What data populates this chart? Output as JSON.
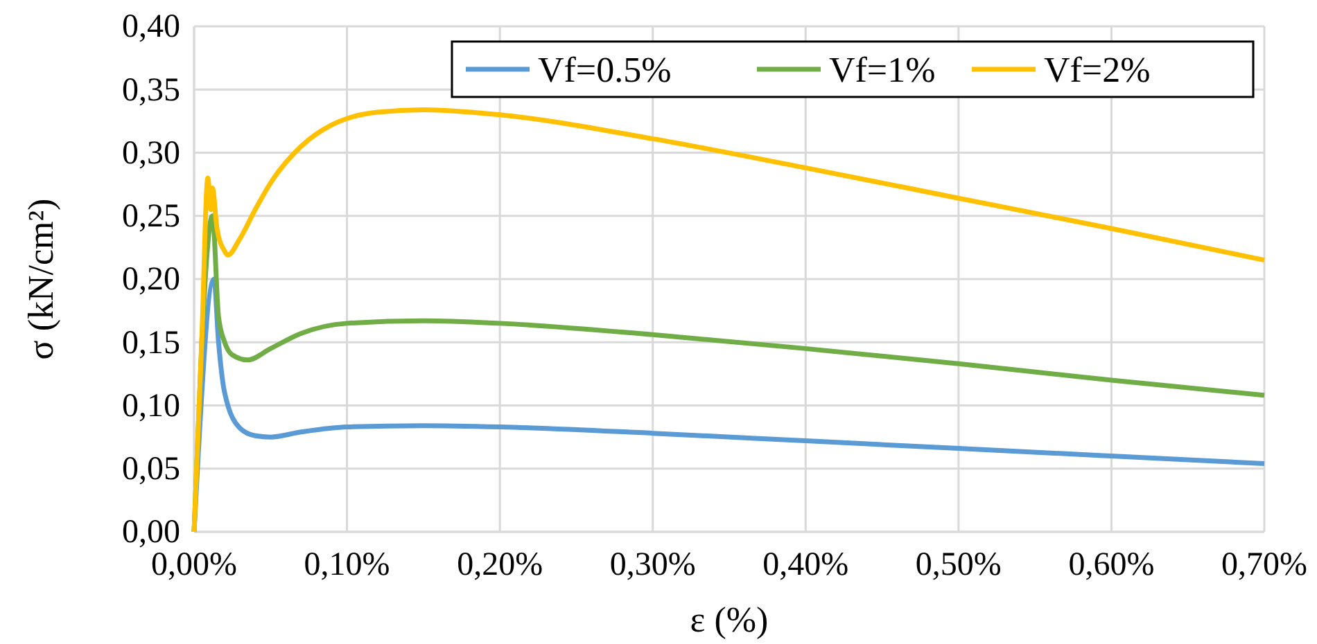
{
  "chart_data": {
    "type": "line",
    "xlabel": "ε (%)",
    "ylabel": "σ (kN/cm²)",
    "xlim": [
      0,
      0.7
    ],
    "xticks": [
      {
        "value": 0,
        "label": "0,00%"
      },
      {
        "value": 0.1,
        "label": "0,10%"
      },
      {
        "value": 0.2,
        "label": "0,20%"
      },
      {
        "value": 0.3,
        "label": "0,30%"
      },
      {
        "value": 0.4,
        "label": "0,40%"
      },
      {
        "value": 0.5,
        "label": "0,50%"
      },
      {
        "value": 0.6,
        "label": "0,60%"
      },
      {
        "value": 0.7,
        "label": "0,70%"
      }
    ],
    "ylim": [
      0,
      0.4
    ],
    "yticks": [
      {
        "value": 0,
        "label": "0,00"
      },
      {
        "value": 0.05,
        "label": "0,05"
      },
      {
        "value": 0.1,
        "label": "0,10"
      },
      {
        "value": 0.15,
        "label": "0,15"
      },
      {
        "value": 0.2,
        "label": "0,20"
      },
      {
        "value": 0.25,
        "label": "0,25"
      },
      {
        "value": 0.3,
        "label": "0,30"
      },
      {
        "value": 0.35,
        "label": "0,35"
      },
      {
        "value": 0.4,
        "label": "0,40"
      }
    ],
    "grid": true,
    "legend": "top right",
    "marker": "none",
    "line_style": "solid",
    "series": [
      {
        "name": "Vf=0.5%",
        "color": "#5b9bd5",
        "x": [
          0,
          0.013,
          0.016,
          0.02,
          0.03,
          0.04,
          0.05,
          0.07,
          0.1,
          0.15,
          0.2,
          0.3,
          0.4,
          0.5,
          0.6,
          0.7
        ],
        "values": [
          0,
          0.2,
          0.15,
          0.11,
          0.082,
          0.076,
          0.075,
          0.079,
          0.083,
          0.084,
          0.083,
          0.078,
          0.072,
          0.066,
          0.06,
          0.054
        ]
      },
      {
        "name": "Vf=1%",
        "color": "#70ad47",
        "x": [
          0,
          0.005,
          0.012,
          0.016,
          0.02,
          0.025,
          0.035,
          0.05,
          0.07,
          0.1,
          0.15,
          0.2,
          0.3,
          0.4,
          0.5,
          0.6,
          0.7
        ],
        "values": [
          0,
          0.15,
          0.25,
          0.17,
          0.15,
          0.14,
          0.136,
          0.145,
          0.157,
          0.165,
          0.167,
          0.165,
          0.156,
          0.145,
          0.133,
          0.12,
          0.108
        ]
      },
      {
        "name": "Vf=2%",
        "color": "#ffc000",
        "x": [
          0,
          0.005,
          0.009,
          0.011,
          0.012,
          0.015,
          0.02,
          0.022,
          0.03,
          0.04,
          0.05,
          0.07,
          0.09,
          0.1,
          0.12,
          0.15,
          0.2,
          0.3,
          0.4,
          0.5,
          0.6,
          0.7
        ],
        "values": [
          0,
          0.15,
          0.28,
          0.255,
          0.272,
          0.24,
          0.222,
          0.219,
          0.232,
          0.255,
          0.276,
          0.305,
          0.322,
          0.327,
          0.332,
          0.334,
          0.33,
          0.311,
          0.288,
          0.264,
          0.24,
          0.215
        ]
      }
    ]
  }
}
